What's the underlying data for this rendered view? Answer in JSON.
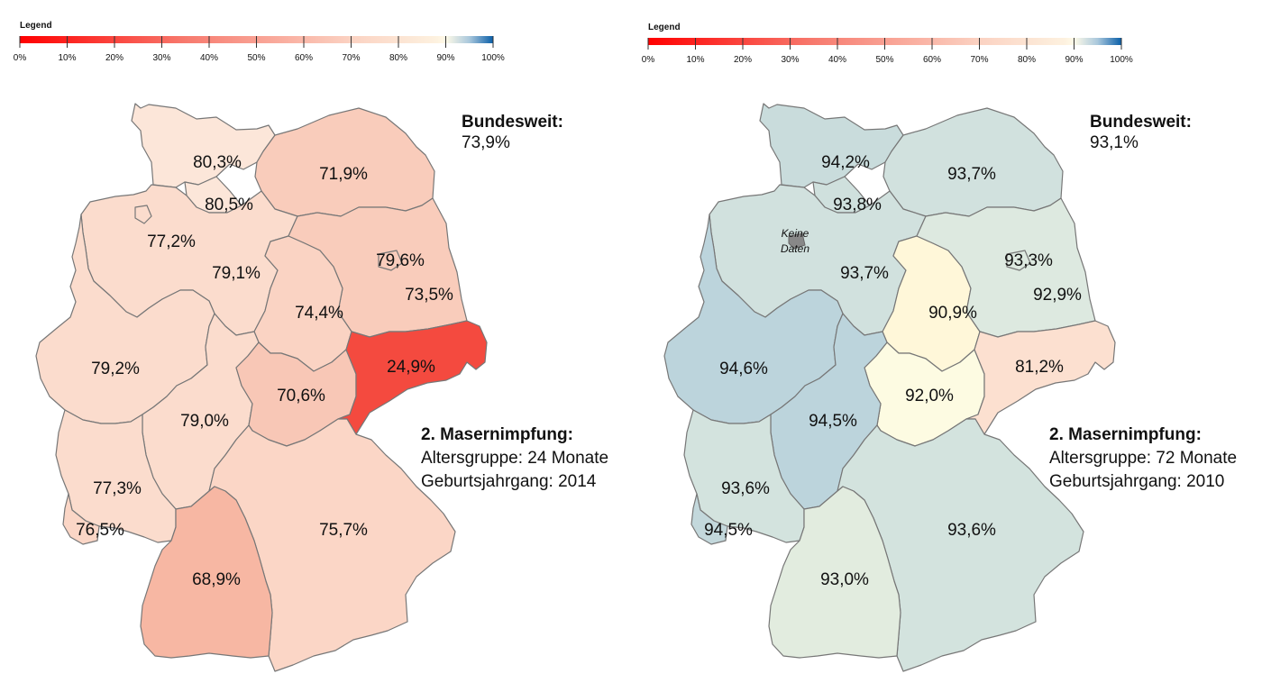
{
  "legend": {
    "title": "Legend",
    "ticks": [
      "0%",
      "10%",
      "20%",
      "30%",
      "40%",
      "50%",
      "60%",
      "70%",
      "80%",
      "90%",
      "100%"
    ]
  },
  "colors": {
    "scale": [
      "#ff0000",
      "#fdeedd",
      "#fffbe6",
      "#0a5fa8"
    ],
    "border": "#777777",
    "nodata": "#888888"
  },
  "maps": [
    {
      "bundesweit_label": "Bundesweit:",
      "bundesweit_value": "73,9%",
      "title": "2. Masernimpfung:",
      "age_group": "Altersgruppe: 24 Monate",
      "birth_cohort": "Geburtsjahrgang: 2014",
      "states": [
        {
          "id": "SH",
          "value": "80,3%",
          "fill": "#fce6d9"
        },
        {
          "id": "HH",
          "value": "80,5%",
          "fill": "#fce6d9"
        },
        {
          "id": "MV",
          "value": "71,9%",
          "fill": "#f9ccbb"
        },
        {
          "id": "NI",
          "value": "77,2%",
          "fill": "#fbdccd"
        },
        {
          "id": "HB",
          "value": "79,1%",
          "fill": "#fbdccd"
        },
        {
          "id": "BB",
          "value": "79,6%",
          "fill": "#f9ccbb"
        },
        {
          "id": "BE",
          "value": "73,5%",
          "fill": "#f9ccbb"
        },
        {
          "id": "ST",
          "value": "74,4%",
          "fill": "#fad3c3"
        },
        {
          "id": "NW",
          "value": "79,2%",
          "fill": "#fbdccd"
        },
        {
          "id": "HE",
          "value": "79,0%",
          "fill": "#fbdccd"
        },
        {
          "id": "TH",
          "value": "70,6%",
          "fill": "#f8c7b6"
        },
        {
          "id": "SN",
          "value": "24,9%",
          "fill": "#f44a3f"
        },
        {
          "id": "RP",
          "value": "77,3%",
          "fill": "#fbdccd"
        },
        {
          "id": "SL",
          "value": "76,5%",
          "fill": "#fbd6c6"
        },
        {
          "id": "BY",
          "value": "75,7%",
          "fill": "#fbd6c6"
        },
        {
          "id": "BW",
          "value": "68,9%",
          "fill": "#f7b7a3"
        }
      ]
    },
    {
      "bundesweit_label": "Bundesweit:",
      "bundesweit_value": "93,1%",
      "title": "2. Masernimpfung:",
      "age_group": "Altersgruppe: 72 Monate",
      "birth_cohort": "Geburtsjahrgang: 2010",
      "nodata_line1": "Keine",
      "nodata_line2": "Daten",
      "states": [
        {
          "id": "SH",
          "value": "94,2%",
          "fill": "#c9dcdc"
        },
        {
          "id": "HH",
          "value": "93,8%",
          "fill": "#cfe0dd"
        },
        {
          "id": "MV",
          "value": "93,7%",
          "fill": "#d1e1de"
        },
        {
          "id": "NI",
          "value": "93,7%",
          "fill": "#d1e1de"
        },
        {
          "id": "ST",
          "value": "90,9%",
          "fill": "#fff7d9"
        },
        {
          "id": "BB",
          "value": "93,3%",
          "fill": "#dde9e0"
        },
        {
          "id": "BE",
          "value": "92,9%",
          "fill": "#dde9e0"
        },
        {
          "id": "NW",
          "value": "94,6%",
          "fill": "#bcd4dc"
        },
        {
          "id": "TH",
          "value": "92,0%",
          "fill": "#fdfbe2"
        },
        {
          "id": "SN",
          "value": "81,2%",
          "fill": "#fce0d0"
        },
        {
          "id": "HE",
          "value": "94,5%",
          "fill": "#bcd4dc"
        },
        {
          "id": "RP",
          "value": "93,6%",
          "fill": "#d3e3de"
        },
        {
          "id": "SL",
          "value": "94,5%",
          "fill": "#c3d8dc"
        },
        {
          "id": "BY",
          "value": "93,6%",
          "fill": "#d3e3de"
        },
        {
          "id": "BW",
          "value": "93,0%",
          "fill": "#e2ecdf"
        }
      ]
    }
  ]
}
